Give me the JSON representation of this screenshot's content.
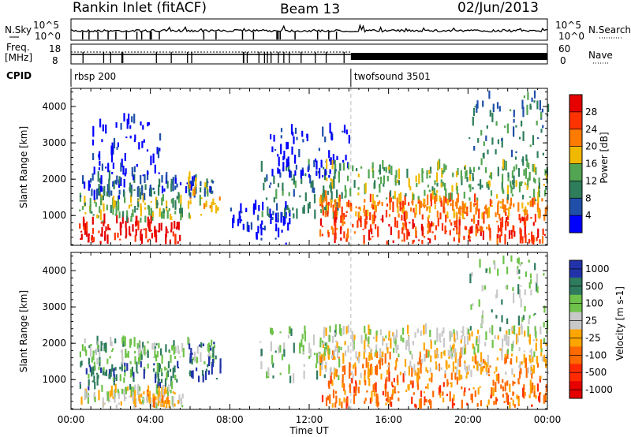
{
  "header": {
    "station": "Rankin Inlet (fitACF)",
    "beam": "Beam 13",
    "date": "02/Jun/2013"
  },
  "noise_panel": {
    "left_label": "N.Sky",
    "right_label": "N.Search",
    "left_ticks": [
      "10^5",
      "10^0"
    ],
    "right_ticks": [
      "10^5",
      "10^0"
    ]
  },
  "freq_panel": {
    "left_label_1": "Freq.",
    "left_label_2": "[MHz]",
    "left_ticks": [
      "18",
      "8"
    ],
    "right_label": "Nave",
    "right_ticks": [
      "60",
      "0"
    ]
  },
  "cpid": {
    "label": "CPID",
    "segments": [
      {
        "start_hour": 0.0,
        "label": "rbsp 200"
      },
      {
        "start_hour": 14.1,
        "label": "twofsound 3501"
      }
    ]
  },
  "colors": {
    "power": [
      "#0000ff",
      "#1f4fa8",
      "#2e7d5b",
      "#52a552",
      "#f0b800",
      "#ff7a00",
      "#ff3300",
      "#e60000"
    ],
    "velocity": [
      "#2233aa",
      "#2e7b5e",
      "#6ec24a",
      "#c8c8c8",
      "#ffa500",
      "#ff6a00",
      "#ff2a00",
      "#e60000"
    ]
  },
  "chart_data": [
    {
      "type": "heatmap",
      "name": "power",
      "ylabel": "Slant Range [km]",
      "colorbar_label": "Power [dB]",
      "colorbar_ticks": [
        "4",
        "8",
        "12",
        "16",
        "20",
        "24",
        "28"
      ],
      "yticks": [
        "1000",
        "2000",
        "3000",
        "4000"
      ],
      "ylim": [
        180,
        4500
      ],
      "xlim_hours": [
        0,
        24
      ],
      "regions": [
        {
          "t0": 0.4,
          "t1": 5.6,
          "r0": 200,
          "r1": 800,
          "level": 7
        },
        {
          "t0": 0.4,
          "t1": 5.6,
          "r0": 800,
          "r1": 1400,
          "level": 3
        },
        {
          "t0": 0.4,
          "t1": 7.2,
          "r0": 1400,
          "r1": 2000,
          "level": 1
        },
        {
          "t0": 1.0,
          "t1": 4.5,
          "r0": 2000,
          "r1": 3600,
          "level": 0
        },
        {
          "t0": 5.8,
          "t1": 7.5,
          "r0": 900,
          "r1": 2000,
          "level": 4
        },
        {
          "t0": 8.0,
          "t1": 11.0,
          "r0": 200,
          "r1": 1200,
          "level": 0
        },
        {
          "t0": 9.5,
          "t1": 13.5,
          "r0": 900,
          "r1": 2300,
          "level": 2
        },
        {
          "t0": 10.0,
          "t1": 14.0,
          "r0": 2000,
          "r1": 3300,
          "level": 0
        },
        {
          "t0": 12.5,
          "t1": 24.0,
          "r0": 200,
          "r1": 900,
          "level": 6
        },
        {
          "t0": 12.5,
          "t1": 24.0,
          "r0": 900,
          "r1": 1400,
          "level": 5
        },
        {
          "t0": 12.5,
          "t1": 24.0,
          "r0": 1400,
          "r1": 2300,
          "level": 3
        },
        {
          "t0": 20.0,
          "t1": 24.0,
          "r0": 2300,
          "r1": 4300,
          "level": 2
        }
      ]
    },
    {
      "type": "heatmap",
      "name": "velocity",
      "ylabel": "Slant Range [km]",
      "colorbar_label": "Velocity [m s-1]",
      "colorbar_ticks": [
        "1000",
        "500",
        "100",
        "25",
        "-25",
        "-100",
        "-500",
        "-1000"
      ],
      "yticks": [
        "1000",
        "2000",
        "3000",
        "4000"
      ],
      "ylim": [
        180,
        4500
      ],
      "xlim_hours": [
        0,
        24
      ],
      "xticks": [
        "00:00",
        "04:00",
        "08:00",
        "12:00",
        "16:00",
        "20:00",
        "00:00"
      ],
      "xlabel": "Time UT",
      "regions": [
        {
          "t0": 0.4,
          "t1": 5.6,
          "r0": 200,
          "r1": 700,
          "level": 3
        },
        {
          "t0": 0.4,
          "t1": 5.6,
          "r0": 700,
          "r1": 1400,
          "level": 1
        },
        {
          "t0": 3.0,
          "t1": 5.6,
          "r0": 200,
          "r1": 600,
          "level": 4
        },
        {
          "t0": 0.4,
          "t1": 7.2,
          "r0": 1400,
          "r1": 2000,
          "level": 2
        },
        {
          "t0": 5.8,
          "t1": 7.5,
          "r0": 900,
          "r1": 2000,
          "level": 0
        },
        {
          "t0": 9.5,
          "t1": 13.5,
          "r0": 900,
          "r1": 2300,
          "level": 2
        },
        {
          "t0": 12.5,
          "t1": 24.0,
          "r0": 200,
          "r1": 1000,
          "level": 5
        },
        {
          "t0": 12.5,
          "t1": 24.0,
          "r0": 1000,
          "r1": 1600,
          "level": 4
        },
        {
          "t0": 12.5,
          "t1": 24.0,
          "r0": 1600,
          "r1": 2300,
          "level": 3
        },
        {
          "t0": 20.0,
          "t1": 24.0,
          "r0": 2300,
          "r1": 4300,
          "level": 2
        }
      ]
    }
  ]
}
